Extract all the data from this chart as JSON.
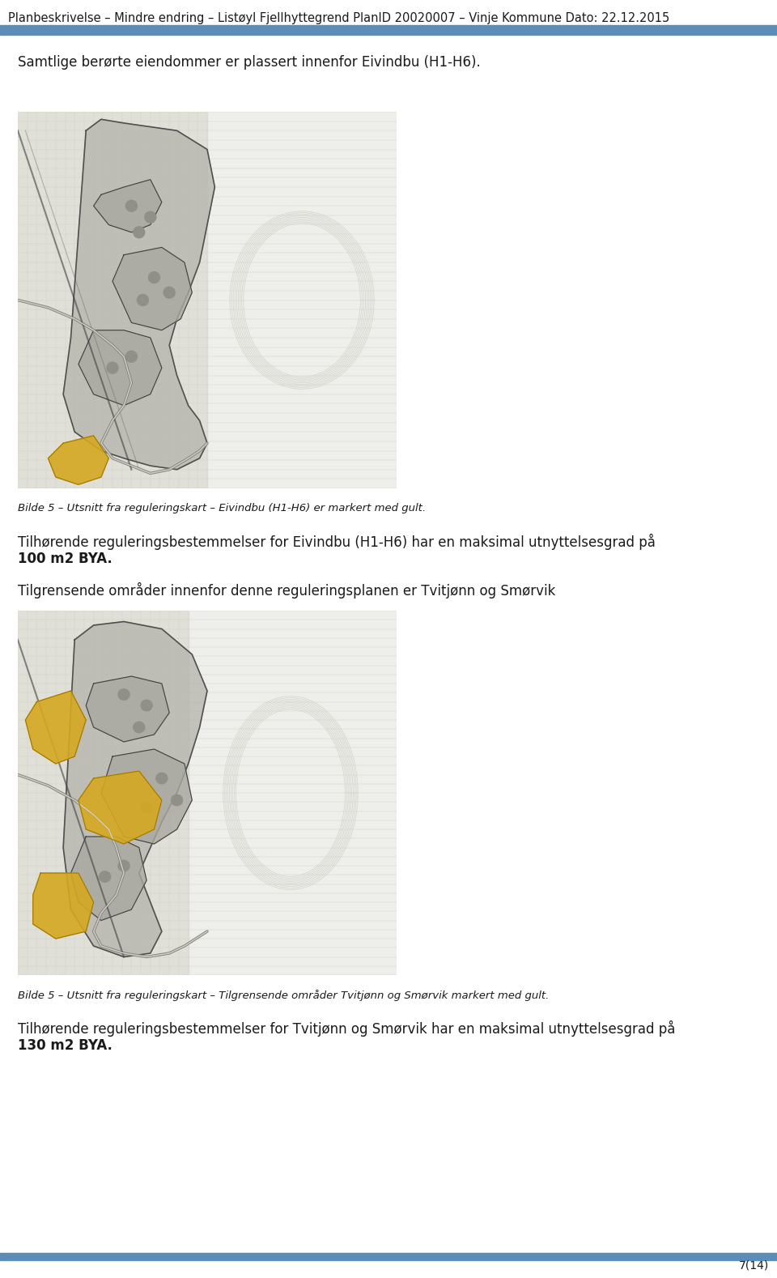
{
  "header_text": "Planbeskrivelse – Mindre endring – Listøyl Fjellhyttegrend PlanID 20020007 – Vinje Kommune Dato: 22.12.2015",
  "header_bar_color": "#5b8db8",
  "footer_bar_color": "#5b8db8",
  "page_number": "7(14)",
  "background_color": "#ffffff",
  "text_color": "#1a1a1a",
  "header_fontsize": 10.5,
  "body_fontsize": 12,
  "caption_fontsize": 9.5,
  "paragraph1": "Samtlige berørte eiendommer er plassert innenfor Eivindbu (H1-H6).",
  "caption1": "Bilde 5 – Utsnitt fra reguleringskart – Eivindbu (H1-H6) er markert med gult.",
  "paragraph2_normal": "Tilhørende reguleringsbestemmelser for Eivindbu (H1-H6) har en maksimal utnyttelsesgrad på ",
  "paragraph2_bold": "100 m2 BYA",
  "paragraph2_end": ".",
  "paragraph3": "Tilgrensende områder innenfor denne reguleringsplanen er Tvitjønn og Smørvik",
  "caption2": "Bilde 5 – Utsnitt fra reguleringskart – Tilgrensende områder Tvitjønn og Smørvik markert med gult.",
  "paragraph4_normal": "Tilhørende reguleringsbestemmelser for Tvitjønn og Smørvik har en maksimal utnyttelsesgrad på ",
  "paragraph4_bold": "130 m2 BYA",
  "paragraph4_end": ".",
  "map_bg_color": "#e8e8e0",
  "map_grid_color": "#c0c8b8",
  "map_zone_color": "#b8b8b0",
  "map_yellow_color": "#d4a820",
  "map_road_color": "#808080",
  "map_border_color": "#404040",
  "map_contour_color": "#c0c0b8"
}
